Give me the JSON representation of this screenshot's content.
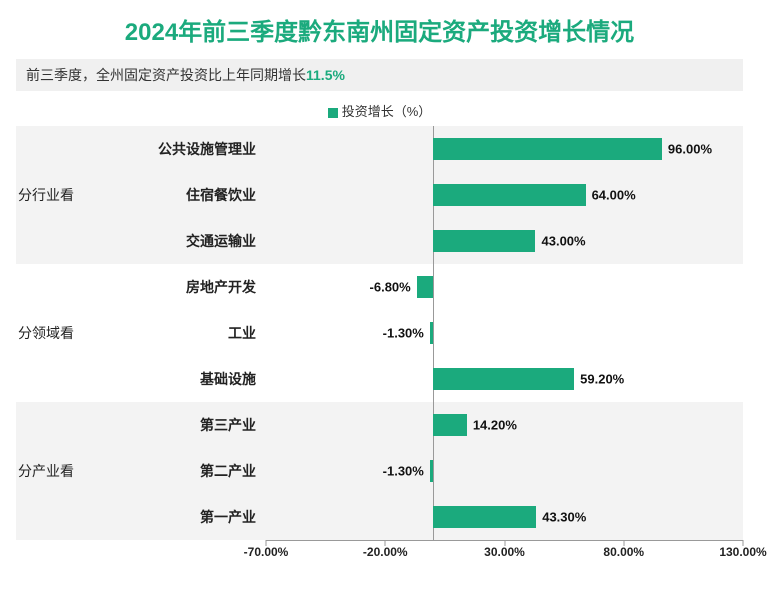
{
  "title": "2024年前三季度黔东南州固定资产投资增长情况",
  "subtitle_prefix": "前三季度，全州固定资产投资比上年同期增长",
  "subtitle_value": "11.5%",
  "legend_label": "投资增长（%）",
  "chart": {
    "type": "bar",
    "orientation": "horizontal",
    "xmin": -70,
    "xmax": 130,
    "xticks": [
      -70,
      -20,
      30,
      80,
      130
    ],
    "xtick_labels": [
      "-70.00%",
      "-20.00%",
      "30.00%",
      "80.00%",
      "130.00%"
    ],
    "bar_color": "#1baa7d",
    "title_color": "#1baa7d",
    "background_color": "#ffffff",
    "band_colors": [
      "#f3f3f3",
      "#ffffff",
      "#f3f3f3"
    ],
    "groups": [
      {
        "name": "分行业看",
        "items": [
          {
            "category": "公共设施管理业",
            "value": 96.0,
            "label": "96.00%"
          },
          {
            "category": "住宿餐饮业",
            "value": 64.0,
            "label": "64.00%"
          },
          {
            "category": "交通运输业",
            "value": 43.0,
            "label": "43.00%"
          }
        ]
      },
      {
        "name": "分领域看",
        "items": [
          {
            "category": "房地产开发",
            "value": -6.8,
            "label": "-6.80%"
          },
          {
            "category": "工业",
            "value": -1.3,
            "label": "-1.30%"
          },
          {
            "category": "基础设施",
            "value": 59.2,
            "label": "59.20%"
          }
        ]
      },
      {
        "name": "分产业看",
        "items": [
          {
            "category": "第三产业",
            "value": 14.2,
            "label": "14.20%"
          },
          {
            "category": "第二产业",
            "value": -1.3,
            "label": "-1.30%"
          },
          {
            "category": "第一产业",
            "value": 43.3,
            "label": "43.30%"
          }
        ]
      }
    ]
  }
}
